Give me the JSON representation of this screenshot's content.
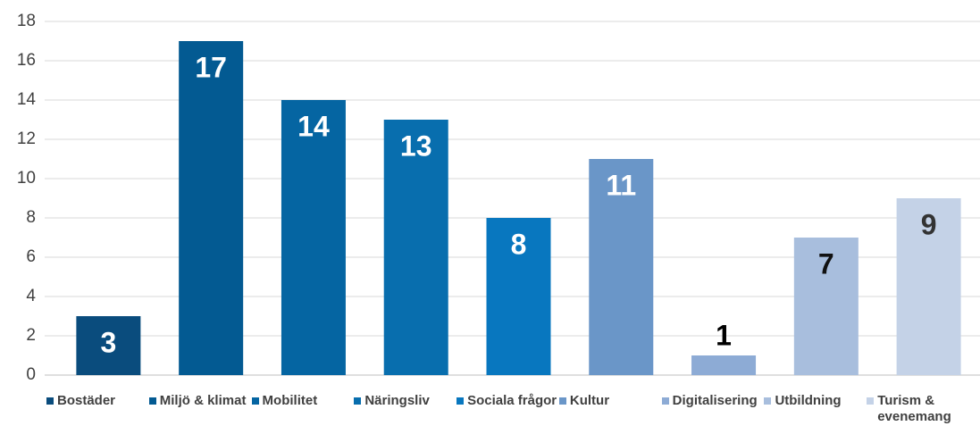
{
  "chart_data": {
    "type": "bar",
    "categories": [
      "Bostäder",
      "Miljö & klimat",
      "Mobilitet",
      "Näringsliv",
      "Sociala frågor",
      "Kultur",
      "Digitalisering",
      "Utbildning",
      "Turism & evenemang"
    ],
    "values": [
      3,
      17,
      14,
      13,
      8,
      11,
      1,
      7,
      9
    ],
    "colors": [
      "#0a4c7d",
      "#035a92",
      "#0565a2",
      "#086eae",
      "#0877bf",
      "#6a96c8",
      "#8dabd5",
      "#a8bedd",
      "#c4d2e7"
    ],
    "label_colors": [
      "#ffffff",
      "#ffffff",
      "#ffffff",
      "#ffffff",
      "#ffffff",
      "#ffffff",
      "#000000",
      "#111111",
      "#333333"
    ],
    "ylim": [
      0,
      18
    ],
    "yticks": [
      0,
      2,
      4,
      6,
      8,
      10,
      12,
      14,
      16,
      18
    ],
    "grid": true
  }
}
